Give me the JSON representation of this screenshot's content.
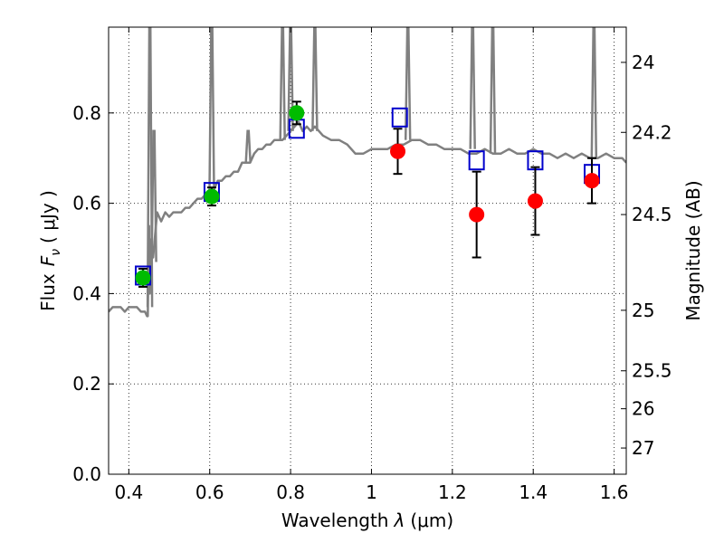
{
  "chart_data": {
    "type": "scatter",
    "title": "",
    "xlabel": "Wavelength",
    "xlabel_symbol": "λ",
    "xlabel_unit": "(μm)",
    "ylabel": "Flux",
    "ylabel_symbol": "F",
    "ylabel_subscript": "ν",
    "ylabel_unit": "( μJy )",
    "y2label": "Magnitude (AB)",
    "xlim": [
      0.35,
      1.63
    ],
    "ylim": [
      0.0,
      0.99
    ],
    "grid": true,
    "x_ticks": [
      {
        "value": 0.4,
        "label": "0.4"
      },
      {
        "value": 0.6,
        "label": "0.6"
      },
      {
        "value": 0.8,
        "label": "0.8"
      },
      {
        "value": 1.0,
        "label": "1"
      },
      {
        "value": 1.2,
        "label": "1.2"
      },
      {
        "value": 1.4,
        "label": "1.4"
      },
      {
        "value": 1.6,
        "label": "1.6"
      }
    ],
    "y_ticks": [
      {
        "value": 0.0,
        "label": "0.0"
      },
      {
        "value": 0.2,
        "label": "0.2"
      },
      {
        "value": 0.4,
        "label": "0.4"
      },
      {
        "value": 0.6,
        "label": "0.6"
      },
      {
        "value": 0.8,
        "label": "0.8"
      }
    ],
    "y2_ticks": [
      {
        "flux": 0.912,
        "label": "24"
      },
      {
        "flux": 0.757,
        "label": "24.2"
      },
      {
        "flux": 0.575,
        "label": "24.5"
      },
      {
        "flux": 0.363,
        "label": "25"
      },
      {
        "flux": 0.229,
        "label": "25.5"
      },
      {
        "flux": 0.145,
        "label": "26"
      },
      {
        "flux": 0.058,
        "label": "27"
      }
    ],
    "series": [
      {
        "kind": "line",
        "color": "#808080",
        "x": [
          0.35,
          0.36,
          0.37,
          0.38,
          0.39,
          0.4,
          0.41,
          0.42,
          0.43,
          0.44,
          0.445,
          0.447,
          0.45,
          0.452,
          0.455,
          0.46,
          0.47,
          0.48,
          0.49,
          0.5,
          0.51,
          0.52,
          0.53,
          0.54,
          0.55,
          0.56,
          0.57,
          0.58,
          0.59,
          0.6,
          0.605,
          0.61,
          0.62,
          0.63,
          0.64,
          0.65,
          0.66,
          0.67,
          0.68,
          0.69,
          0.7,
          0.71,
          0.72,
          0.73,
          0.74,
          0.75,
          0.76,
          0.77,
          0.78,
          0.79,
          0.8,
          0.81,
          0.82,
          0.83,
          0.84,
          0.85,
          0.86,
          0.87,
          0.88,
          0.9,
          0.92,
          0.94,
          0.96,
          0.98,
          1.0,
          1.02,
          1.04,
          1.06,
          1.08,
          1.1,
          1.12,
          1.14,
          1.16,
          1.18,
          1.2,
          1.22,
          1.24,
          1.26,
          1.28,
          1.3,
          1.32,
          1.34,
          1.36,
          1.38,
          1.4,
          1.42,
          1.44,
          1.46,
          1.48,
          1.5,
          1.52,
          1.54,
          1.56,
          1.58,
          1.6,
          1.62,
          1.63
        ],
        "y": [
          0.36,
          0.37,
          0.37,
          0.37,
          0.36,
          0.37,
          0.37,
          0.37,
          0.36,
          0.36,
          0.35,
          0.35,
          0.55,
          0.4,
          0.52,
          0.48,
          0.58,
          0.56,
          0.58,
          0.57,
          0.58,
          0.58,
          0.58,
          0.59,
          0.59,
          0.6,
          0.61,
          0.61,
          0.62,
          0.63,
          0.63,
          0.63,
          0.65,
          0.65,
          0.66,
          0.66,
          0.67,
          0.67,
          0.69,
          0.69,
          0.69,
          0.71,
          0.72,
          0.72,
          0.73,
          0.73,
          0.74,
          0.74,
          0.74,
          0.75,
          0.76,
          0.77,
          0.78,
          0.76,
          0.77,
          0.76,
          0.77,
          0.76,
          0.75,
          0.74,
          0.74,
          0.73,
          0.71,
          0.71,
          0.72,
          0.72,
          0.72,
          0.73,
          0.73,
          0.74,
          0.74,
          0.73,
          0.73,
          0.72,
          0.72,
          0.72,
          0.71,
          0.71,
          0.72,
          0.71,
          0.71,
          0.72,
          0.71,
          0.71,
          0.72,
          0.71,
          0.71,
          0.7,
          0.71,
          0.7,
          0.71,
          0.7,
          0.7,
          0.71,
          0.7,
          0.7,
          0.69
        ]
      },
      {
        "kind": "emission_lines",
        "color": "#808080",
        "lines": [
          {
            "x": 0.452,
            "base": 0.37,
            "peak": 0.99
          },
          {
            "x": 0.462,
            "base": 0.47,
            "peak": 0.76
          },
          {
            "x": 0.605,
            "base": 0.63,
            "peak": 0.99
          },
          {
            "x": 0.695,
            "base": 0.69,
            "peak": 0.76
          },
          {
            "x": 0.78,
            "base": 0.74,
            "peak": 0.99
          },
          {
            "x": 0.8,
            "base": 0.76,
            "peak": 0.99
          },
          {
            "x": 0.86,
            "base": 0.76,
            "peak": 0.99
          },
          {
            "x": 1.09,
            "base": 0.74,
            "peak": 0.99
          },
          {
            "x": 1.25,
            "base": 0.72,
            "peak": 0.99
          },
          {
            "x": 1.3,
            "base": 0.71,
            "peak": 0.99
          },
          {
            "x": 1.55,
            "base": 0.7,
            "peak": 0.99
          }
        ]
      },
      {
        "kind": "open_square",
        "color": "#0000cc",
        "x": [
          0.435,
          0.605,
          0.815,
          1.07,
          1.26,
          1.405,
          1.545
        ],
        "y": [
          0.44,
          0.625,
          0.765,
          0.79,
          0.695,
          0.695,
          0.665
        ]
      },
      {
        "kind": "filled_circle",
        "color": "#00bb00",
        "x": [
          0.435,
          0.605,
          0.815
        ],
        "y": [
          0.435,
          0.615,
          0.8
        ],
        "err": [
          0.02,
          0.02,
          0.025
        ]
      },
      {
        "kind": "filled_circle",
        "color": "#ff0000",
        "x": [
          1.065,
          1.26,
          1.405,
          1.545
        ],
        "y": [
          0.715,
          0.575,
          0.605,
          0.65
        ],
        "err": [
          0.05,
          0.095,
          0.075,
          0.05
        ]
      }
    ]
  }
}
